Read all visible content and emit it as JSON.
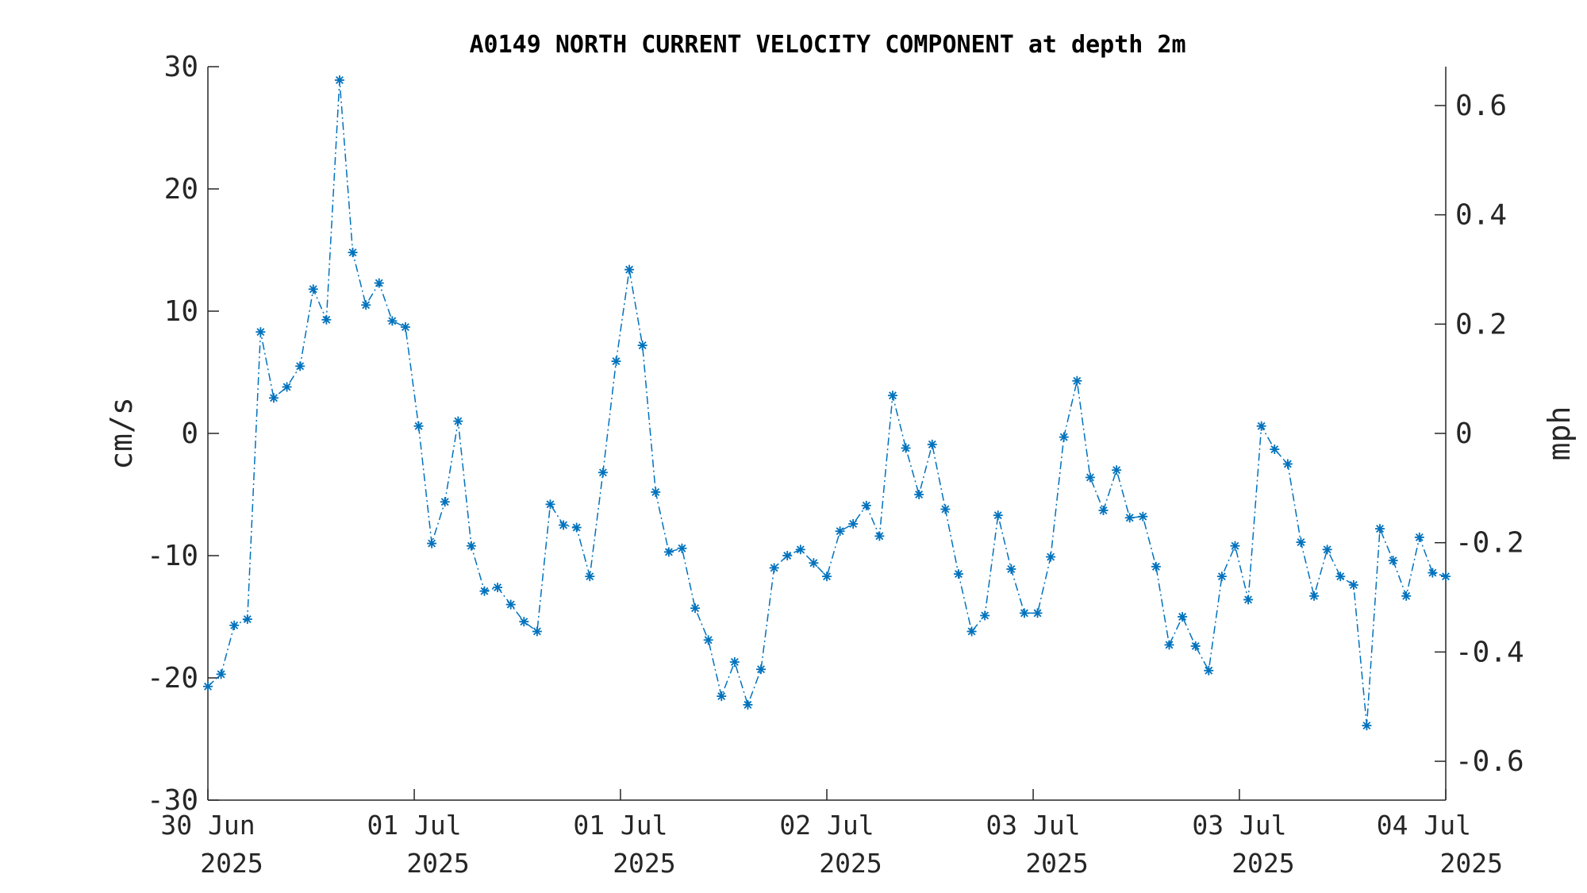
{
  "chart_data": {
    "type": "line",
    "title": "A0149 NORTH CURRENT VELOCITY COMPONENT at depth 2m",
    "ylabel_left": "cm/s",
    "ylabel_right": "mph",
    "ylim": [
      -30,
      30
    ],
    "yticks": [
      30,
      20,
      10,
      0,
      -10,
      -20,
      -30
    ],
    "yticks_right": [
      0.6,
      0.4,
      0.2,
      0,
      -0.2,
      -0.4,
      -0.6
    ],
    "yticks_right_labels": [
      "0.6",
      "0.4",
      "0.2",
      "0",
      "-0.2",
      "-0.4",
      "-0.6"
    ],
    "xlim_index": [
      0,
      94
    ],
    "xticks": [
      {
        "index": 0,
        "line1": "30 Jun",
        "line2": "2025"
      },
      {
        "index": 15.67,
        "line1": "01 Jul",
        "line2": "2025"
      },
      {
        "index": 31.33,
        "line1": "01 Jul",
        "line2": "2025"
      },
      {
        "index": 47,
        "line1": "02 Jul",
        "line2": "2025"
      },
      {
        "index": 62.67,
        "line1": "03 Jul",
        "line2": "2025"
      },
      {
        "index": 78.33,
        "line1": "03 Jul",
        "line2": "2025"
      },
      {
        "index": 94,
        "line1": "04 Jul",
        "line2": "2025"
      }
    ],
    "grid": false,
    "marker": "asterisk",
    "line_style": "dash-dot",
    "color": "#0072BD",
    "series": [
      {
        "values": [
          -20.7,
          -19.7,
          -15.7,
          -15.2,
          8.3,
          2.9,
          3.8,
          5.5,
          11.8,
          9.3,
          28.9,
          14.8,
          10.5,
          12.3,
          9.2,
          8.7,
          0.6,
          -9.0,
          -5.6,
          1.0,
          -9.2,
          -12.9,
          -12.6,
          -14.0,
          -15.4,
          -16.2,
          -5.8,
          -7.5,
          -7.7,
          -11.7,
          -3.2,
          5.9,
          13.4,
          7.2,
          -4.8,
          -9.7,
          -9.4,
          -14.3,
          -16.9,
          -21.5,
          -18.7,
          -22.2,
          -19.3,
          -11.0,
          -10.0,
          -9.5,
          -10.6,
          -11.7,
          -8.0,
          -7.4,
          -5.9,
          -8.4,
          3.1,
          -1.2,
          -5.0,
          -0.9,
          -6.2,
          -11.5,
          -16.2,
          -14.9,
          -6.7,
          -11.1,
          -14.7,
          -14.7,
          -10.1,
          -0.3,
          4.3,
          -3.6,
          -6.3,
          -3.0,
          -6.9,
          -6.8,
          -10.9,
          -17.3,
          -15.0,
          -17.4,
          -19.4,
          -11.7,
          -9.2,
          -13.6,
          0.6,
          -1.3,
          -2.5,
          -8.9,
          -13.3,
          -9.5,
          -11.7,
          -12.4,
          -23.9,
          -7.8,
          -10.4,
          -13.3,
          -8.5,
          -11.4,
          -11.7
        ]
      }
    ]
  }
}
